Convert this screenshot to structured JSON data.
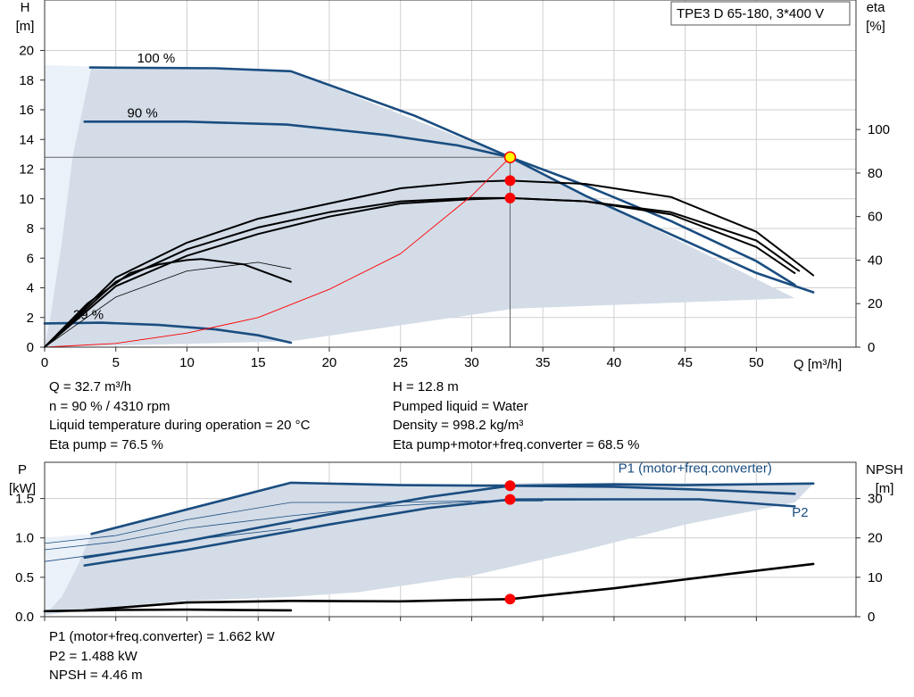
{
  "chart_data": [
    {
      "type": "line",
      "title": "TPE3 D 65-180, 3*400 V",
      "xlabel": "Q [m³/h]",
      "ylabel_line1": "H",
      "ylabel_line2": "[m]",
      "y2label_line1": "eta",
      "y2label_line2": "[%]",
      "xlim": [
        0,
        57
      ],
      "ylim": [
        0,
        23.4
      ],
      "y2lim": [
        0,
        159.5
      ],
      "xticks": [
        0,
        5,
        10,
        15,
        20,
        25,
        30,
        35,
        40,
        45,
        50
      ],
      "yticks": [
        0,
        2,
        4,
        6,
        8,
        10,
        12,
        14,
        16,
        18,
        20
      ],
      "y2ticks": [
        0,
        20,
        40,
        60,
        80,
        100
      ],
      "grid": true,
      "curve_labels": [
        {
          "text": "100 %",
          "x": 6.5,
          "y": 19.2
        },
        {
          "text": "90 %",
          "x": 5.8,
          "y": 15.5
        },
        {
          "text": "29 %",
          "x": 2.0,
          "y": 1.9
        }
      ],
      "area_points": [
        [
          0,
          19.0
        ],
        [
          3.3,
          18.9
        ],
        [
          17.3,
          18.6
        ],
        [
          32.7,
          12.8
        ],
        [
          52.7,
          3.3
        ],
        [
          33,
          2.6
        ],
        [
          17.3,
          0.4
        ],
        [
          0,
          0
        ]
      ],
      "series": [
        {
          "role": "head",
          "values": [
            [
              3.2,
              18.85
            ],
            [
              12,
              18.8
            ],
            [
              17.3,
              18.6
            ],
            [
              26,
              15.6
            ],
            [
              32.7,
              12.8
            ],
            [
              38,
              10.2
            ],
            [
              44,
              7.6
            ],
            [
              50,
              5.0
            ],
            [
              54,
              3.7
            ]
          ]
        },
        {
          "role": "head",
          "values": [
            [
              2.8,
              15.2
            ],
            [
              10,
              15.2
            ],
            [
              17,
              15.0
            ],
            [
              24,
              14.3
            ],
            [
              29,
              13.6
            ],
            [
              32.7,
              12.8
            ],
            [
              38,
              10.9
            ],
            [
              44,
              8.5
            ],
            [
              50,
              5.8
            ],
            [
              52.7,
              4.2
            ]
          ]
        },
        {
          "role": "head",
          "values": [
            [
              0,
              1.6
            ],
            [
              4,
              1.65
            ],
            [
              8,
              1.5
            ],
            [
              12,
              1.2
            ],
            [
              15,
              0.8
            ],
            [
              17.3,
              0.3
            ]
          ]
        },
        {
          "role": "eta",
          "values": [
            [
              0,
              0
            ],
            [
              5,
              23
            ],
            [
              10,
              35
            ],
            [
              15,
              39
            ],
            [
              17.3,
              36
            ]
          ]
        },
        {
          "role": "eta",
          "values": [
            [
              0,
              0
            ],
            [
              3,
              20
            ],
            [
              6,
              34
            ],
            [
              8,
              38
            ],
            [
              10,
              40
            ],
            [
              11,
              40.5
            ],
            [
              14,
              38
            ],
            [
              17.3,
              30
            ]
          ]
        },
        {
          "role": "eta",
          "values": [
            [
              0,
              0
            ],
            [
              5,
              32
            ],
            [
              10,
              48
            ],
            [
              15,
              59
            ],
            [
              20,
              66
            ],
            [
              25,
              73
            ],
            [
              30,
              76
            ],
            [
              32.7,
              76.5
            ],
            [
              38,
              75
            ],
            [
              44,
              69
            ],
            [
              50,
              53
            ],
            [
              54,
              33
            ]
          ]
        },
        {
          "role": "eta",
          "values": [
            [
              0,
              0
            ],
            [
              5,
              30
            ],
            [
              10,
              45
            ],
            [
              15,
              55
            ],
            [
              20,
              62
            ],
            [
              25,
              67
            ],
            [
              30,
              68.5
            ],
            [
              32.7,
              68.5
            ],
            [
              38,
              67
            ],
            [
              44,
              61
            ],
            [
              50,
              46
            ],
            [
              52.7,
              34
            ]
          ]
        },
        {
          "role": "eta",
          "values": [
            [
              0,
              0
            ],
            [
              5,
              28
            ],
            [
              10,
              42
            ],
            [
              15,
              52
            ],
            [
              20,
              60
            ],
            [
              25,
              66
            ],
            [
              30,
              68
            ],
            [
              32.7,
              68.5
            ],
            [
              38,
              67
            ],
            [
              44,
              62
            ],
            [
              50,
              49
            ],
            [
              53,
              35
            ]
          ]
        },
        {
          "role": "system",
          "values": [
            [
              0,
              0
            ],
            [
              5,
              0.25
            ],
            [
              10,
              0.95
            ],
            [
              15,
              2.0
            ],
            [
              20,
              3.9
            ],
            [
              25,
              6.3
            ],
            [
              30,
              10.2
            ],
            [
              32.7,
              12.8
            ]
          ]
        }
      ],
      "op_points": [
        {
          "x": 32.7,
          "y": 12.8,
          "axis": "H",
          "kind": "duty"
        },
        {
          "x": 32.7,
          "y": 76.5,
          "axis": "eta"
        },
        {
          "x": 32.7,
          "y": 68.5,
          "axis": "eta"
        }
      ],
      "readouts": [
        {
          "left": "Q = 32.7 m³/h",
          "right": "H = 12.8 m"
        },
        {
          "left": "n = 90 % / 4310 rpm",
          "right": "Pumped liquid = Water"
        },
        {
          "left": "Liquid temperature during operation = 20 °C",
          "right": "Density = 998.2 kg/m³"
        },
        {
          "left": "Eta pump = 76.5 %",
          "right": "Eta pump+motor+freq.converter = 68.5 %"
        }
      ]
    },
    {
      "type": "line",
      "ylabel_line1": "P",
      "ylabel_line2": "[kW]",
      "y2label_line1": "NPSH",
      "y2label_line2": "[m]",
      "xlim": [
        0,
        57
      ],
      "ylim": [
        0,
        1.96
      ],
      "y2lim": [
        0,
        39.2
      ],
      "yticks": [
        0.0,
        0.5,
        1.0,
        1.5
      ],
      "y2ticks": [
        0,
        10,
        20,
        30
      ],
      "grid": true,
      "series_labels": [
        {
          "text": "P1 (motor+freq.converter)",
          "x": 40.3,
          "y": 1.83
        },
        {
          "text": "P2",
          "x": 52.5,
          "y": 1.27
        }
      ],
      "area_points": [
        [
          0,
          1.0
        ],
        [
          3.3,
          1.05
        ],
        [
          17.3,
          1.7
        ],
        [
          22,
          1.67
        ],
        [
          30,
          1.68
        ],
        [
          35,
          1.7
        ],
        [
          54,
          1.69
        ],
        [
          52.7,
          1.45
        ],
        [
          45,
          1.17
        ],
        [
          38,
          0.85
        ],
        [
          30,
          0.52
        ],
        [
          22,
          0.31
        ],
        [
          17.3,
          0.25
        ],
        [
          10,
          0.2
        ],
        [
          5,
          0.13
        ],
        [
          3.3,
          0.1
        ],
        [
          0,
          0.02
        ]
      ],
      "series": [
        {
          "role": "P1",
          "name": "P1 (motor+freq.converter)",
          "values": [
            [
              3.3,
              1.05
            ],
            [
              17.3,
              1.7
            ],
            [
              25,
              1.67
            ],
            [
              32.7,
              1.662
            ],
            [
              40,
              1.68
            ],
            [
              45,
              1.67
            ],
            [
              54,
              1.69
            ]
          ]
        },
        {
          "role": "P1",
          "values": [
            [
              2.8,
              0.75
            ],
            [
              10,
              0.96
            ],
            [
              20,
              1.3
            ],
            [
              27,
              1.52
            ],
            [
              32.7,
              1.662
            ],
            [
              40,
              1.65
            ],
            [
              48,
              1.6
            ],
            [
              52.7,
              1.56
            ]
          ]
        },
        {
          "role": "P2",
          "name": "P2",
          "values": [
            [
              2.8,
              0.65
            ],
            [
              10,
              0.85
            ],
            [
              20,
              1.17
            ],
            [
              27,
              1.38
            ],
            [
              32.7,
              1.488
            ],
            [
              40,
              1.49
            ],
            [
              46,
              1.49
            ],
            [
              52.7,
              1.4
            ]
          ]
        },
        {
          "role": "thin",
          "values": [
            [
              0,
              0.93
            ],
            [
              5,
              1.03
            ],
            [
              10,
              1.23
            ],
            [
              17.3,
              1.45
            ],
            [
              24,
              1.45
            ],
            [
              30,
              1.47
            ],
            [
              35,
              1.47
            ]
          ]
        },
        {
          "role": "thin",
          "values": [
            [
              0,
              0.85
            ],
            [
              5,
              0.95
            ],
            [
              10,
              1.12
            ],
            [
              17.3,
              1.28
            ],
            [
              24,
              1.4
            ],
            [
              30,
              1.46
            ]
          ]
        },
        {
          "role": "thin",
          "values": [
            [
              0,
              0.7
            ],
            [
              5,
              0.82
            ],
            [
              10,
              0.97
            ],
            [
              17.3,
              1.12
            ]
          ]
        },
        {
          "role": "NPSH",
          "values": [
            [
              2.8,
              1.6
            ],
            [
              10,
              3.6
            ],
            [
              17.3,
              4.0
            ],
            [
              25,
              3.9
            ],
            [
              32.7,
              4.46
            ],
            [
              40,
              7.2
            ],
            [
              48,
              10.8
            ],
            [
              54,
              13.4
            ]
          ]
        },
        {
          "role": "NPSH",
          "values": [
            [
              0,
              1.4
            ],
            [
              5,
              1.7
            ],
            [
              10,
              1.8
            ],
            [
              17.3,
              1.6
            ]
          ]
        }
      ],
      "op_points": [
        {
          "x": 32.7,
          "y": 1.662,
          "axis": "P"
        },
        {
          "x": 32.7,
          "y": 1.488,
          "axis": "P"
        },
        {
          "x": 32.7,
          "y": 4.46,
          "axis": "NPSH"
        }
      ],
      "readouts": [
        "P1 (motor+freq.converter) = 1.662 kW",
        "P2 = 1.488 kW",
        "NPSH = 4.46 m"
      ]
    }
  ],
  "colors": {
    "head": "#1a4d80",
    "eta": "#000000",
    "system": "#ff0000",
    "area": "#d3dce7",
    "area_light": "#ebf1f8",
    "grid": "#cfcfcf",
    "point": "#ff0000",
    "duty_fill": "#ffff00",
    "label_blue": "#1a4d80"
  }
}
